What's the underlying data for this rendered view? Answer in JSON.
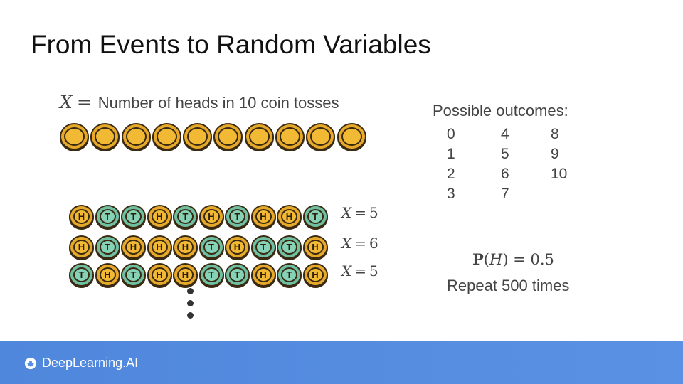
{
  "title": "From Events to Random Variables",
  "definition": {
    "variable": "X",
    "equals": "=",
    "text": "Number of heads in 10 coin tosses"
  },
  "example_rows": [
    {
      "faces": [
        "H",
        "T",
        "T",
        "H",
        "T",
        "H",
        "T",
        "H",
        "H",
        "T"
      ],
      "label_var": "X",
      "label_eq": "=",
      "label_val": "5"
    },
    {
      "faces": [
        "H",
        "T",
        "H",
        "H",
        "H",
        "T",
        "H",
        "T",
        "T",
        "H"
      ],
      "label_var": "X",
      "label_eq": "=",
      "label_val": "6"
    },
    {
      "faces": [
        "T",
        "H",
        "T",
        "H",
        "H",
        "T",
        "T",
        "H",
        "T",
        "H"
      ],
      "label_var": "X",
      "label_eq": "=",
      "label_val": "5"
    }
  ],
  "outcomes": {
    "title": "Possible outcomes:",
    "columns": [
      [
        "0",
        "1",
        "2",
        "3"
      ],
      [
        "4",
        "5",
        "6",
        "7"
      ],
      [
        "8",
        "9",
        "10"
      ]
    ]
  },
  "probability": {
    "p": "P",
    "open": "(",
    "h": "H",
    "close": ")",
    "rest": "= 0.5"
  },
  "repeat": "Repeat 500 times",
  "footer": {
    "brand": "DeepLearning.AI"
  },
  "colors": {
    "head": "#e6a92a",
    "tail": "#6fbfa3",
    "footer": "#5b91e4"
  },
  "icons": {
    "brand": "deeplearning-logo-icon"
  }
}
